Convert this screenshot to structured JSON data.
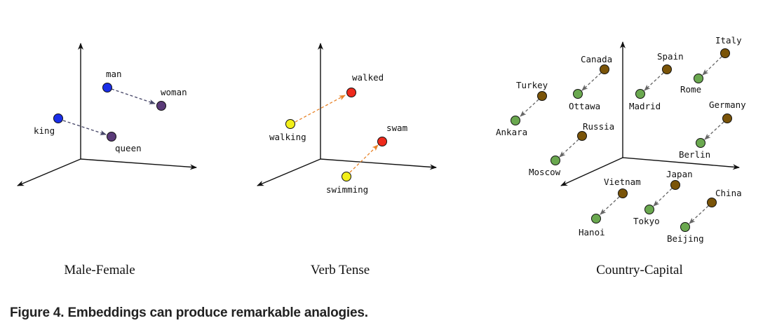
{
  "figure": {
    "caption": "Figure 4. Embeddings can produce remarkable analogies.",
    "colors": {
      "male": "#1a2ee8",
      "female": "#5a3a78",
      "present": "#f2ef1a",
      "past": "#ee2a1c",
      "country": "#7a5408",
      "capital": "#6aa84f",
      "arrow_gender": "#444466",
      "arrow_tense": "#e8842a",
      "arrow_capital": "#666666",
      "axis": "#111111"
    },
    "panels": [
      {
        "id": "male-female",
        "title": "Male-Female",
        "pairs": [
          {
            "from": "man",
            "to": "woman",
            "from_color": "male",
            "to_color": "female",
            "arrow": "arrow_gender"
          },
          {
            "from": "king",
            "to": "queen",
            "from_color": "male",
            "to_color": "female",
            "arrow": "arrow_gender"
          }
        ]
      },
      {
        "id": "verb-tense",
        "title": "Verb Tense",
        "pairs": [
          {
            "from": "walking",
            "to": "walked",
            "from_color": "present",
            "to_color": "past",
            "arrow": "arrow_tense"
          },
          {
            "from": "swimming",
            "to": "swam",
            "from_color": "present",
            "to_color": "past",
            "arrow": "arrow_tense"
          }
        ]
      },
      {
        "id": "country-capital",
        "title": "Country-Capital",
        "pairs": [
          {
            "from": "Turkey",
            "to": "Ankara",
            "from_color": "country",
            "to_color": "capital",
            "arrow": "arrow_capital"
          },
          {
            "from": "Canada",
            "to": "Ottawa",
            "from_color": "country",
            "to_color": "capital",
            "arrow": "arrow_capital"
          },
          {
            "from": "Spain",
            "to": "Madrid",
            "from_color": "country",
            "to_color": "capital",
            "arrow": "arrow_capital"
          },
          {
            "from": "Italy",
            "to": "Rome",
            "from_color": "country",
            "to_color": "capital",
            "arrow": "arrow_capital"
          },
          {
            "from": "Russia",
            "to": "Moscow",
            "from_color": "country",
            "to_color": "capital",
            "arrow": "arrow_capital"
          },
          {
            "from": "Germany",
            "to": "Berlin",
            "from_color": "country",
            "to_color": "capital",
            "arrow": "arrow_capital"
          },
          {
            "from": "Vietnam",
            "to": "Hanoi",
            "from_color": "country",
            "to_color": "capital",
            "arrow": "arrow_capital"
          },
          {
            "from": "Japan",
            "to": "Tokyo",
            "from_color": "country",
            "to_color": "capital",
            "arrow": "arrow_capital"
          },
          {
            "from": "China",
            "to": "Beijing",
            "from_color": "country",
            "to_color": "capital",
            "arrow": "arrow_capital"
          }
        ]
      }
    ]
  }
}
